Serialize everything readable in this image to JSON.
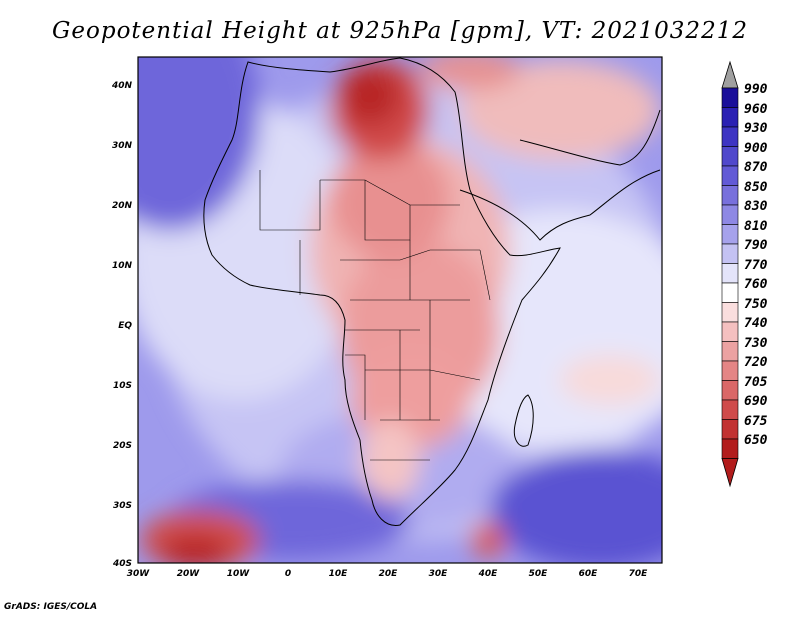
{
  "title": "Geopotential Height at 925hPa [gpm], VT: 2021032212",
  "footer": "GrADS: IGES/COLA",
  "map": {
    "region": "Africa",
    "lon_labels": [
      "30W",
      "20W",
      "10W",
      "0",
      "10E",
      "20E",
      "30E",
      "40E",
      "50E",
      "60E",
      "70E"
    ],
    "lat_labels": [
      "40N",
      "30N",
      "20N",
      "10N",
      "EQ",
      "10S",
      "20S",
      "30S",
      "40S"
    ]
  },
  "legend": {
    "levels": [
      "990",
      "960",
      "930",
      "900",
      "870",
      "850",
      "830",
      "810",
      "790",
      "770",
      "760",
      "750",
      "740",
      "730",
      "720",
      "705",
      "690",
      "675",
      "650"
    ],
    "colors": [
      "#1a0f9a",
      "#2b20b3",
      "#3e34c3",
      "#5048cc",
      "#625ad6",
      "#7870dc",
      "#8e88e4",
      "#a6a2ec",
      "#c4c2f3",
      "#e4e4fa",
      "#ffffff",
      "#fadede",
      "#f5c0c0",
      "#eca2a2",
      "#e48585",
      "#da6868",
      "#cf4b4b",
      "#c23232",
      "#b21c1c"
    ],
    "arrow_top_color": "#a0a0a0",
    "arrow_bottom_color": "#b21c1c"
  }
}
